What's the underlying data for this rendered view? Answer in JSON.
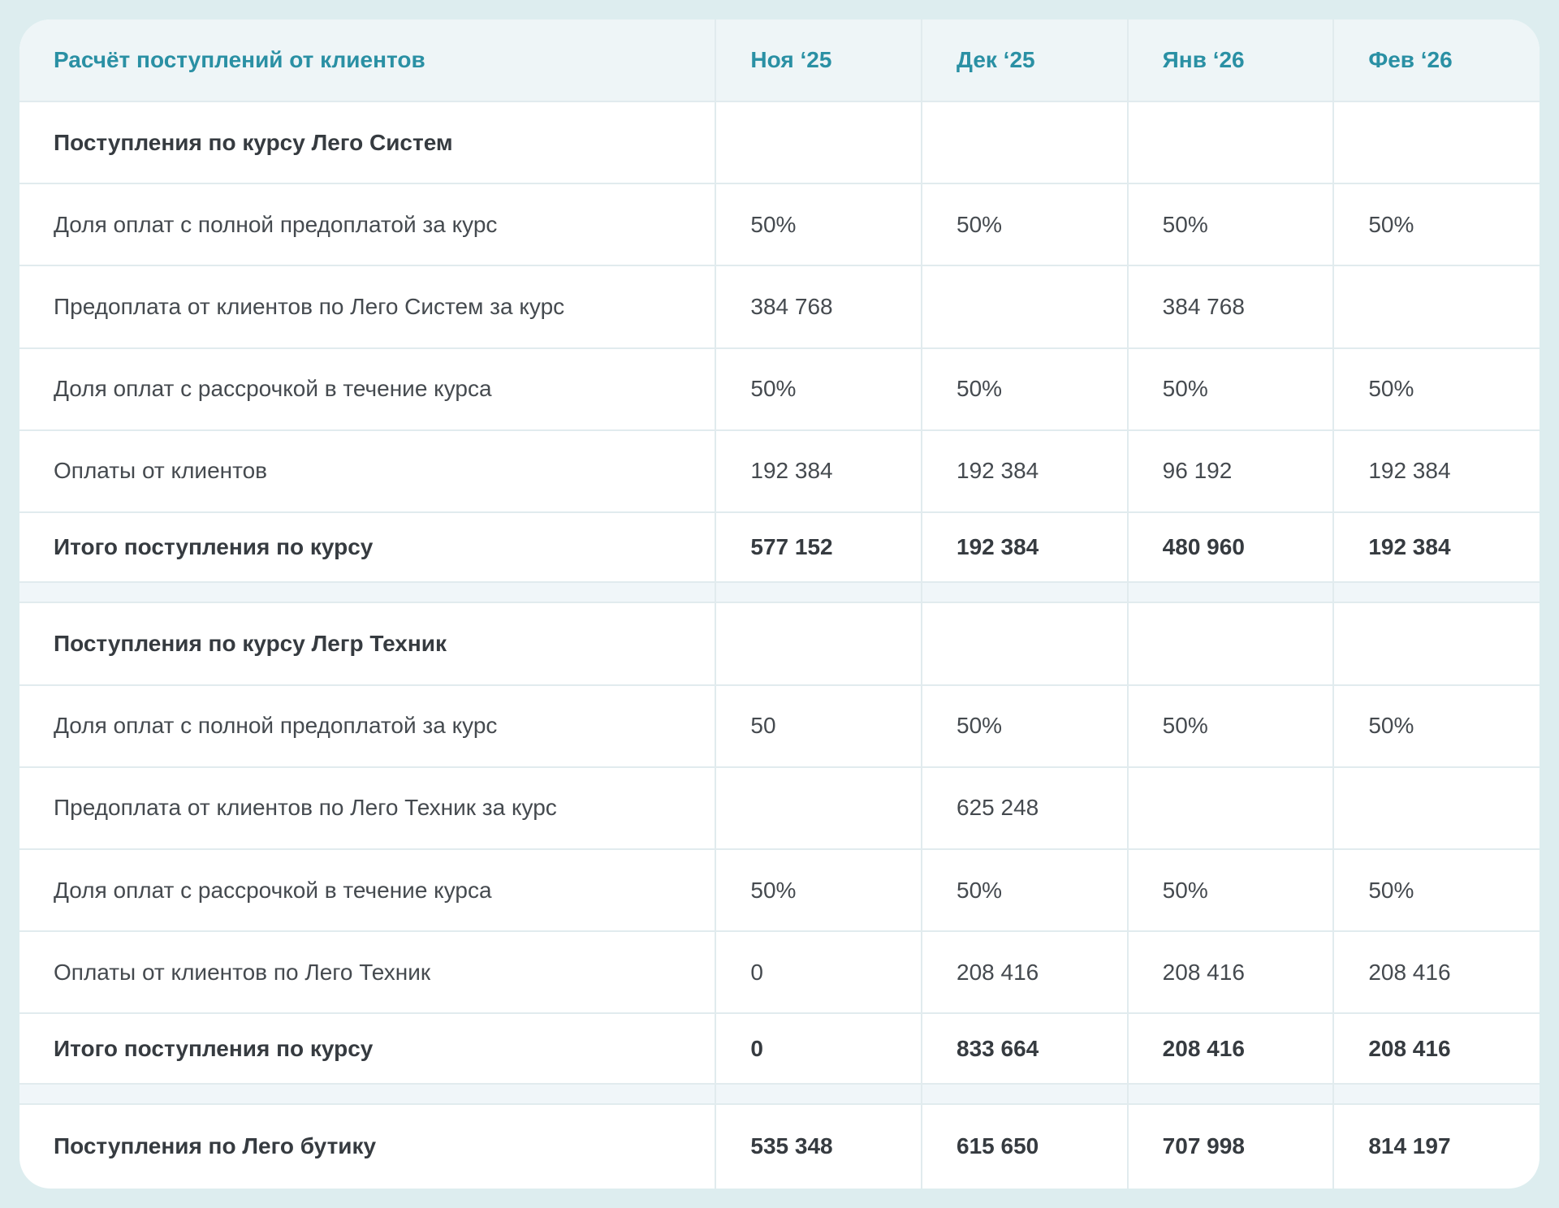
{
  "colors": {
    "accent": "#2a90a4",
    "page_background": "#ddedef",
    "separator_background": "#f0f6f9"
  },
  "table": {
    "title": "Расчёт поступлений от клиентов",
    "columns": [
      "Ноя ‘25",
      "Дек ‘25",
      "Янв ‘26",
      "Фев ‘26"
    ],
    "rows": [
      {
        "type": "section",
        "label": "Поступления по курсу Лего Систем",
        "values": [
          "",
          "",
          "",
          ""
        ]
      },
      {
        "type": "normal",
        "label": "Доля оплат с полной предоплатой за курс",
        "values": [
          "50%",
          "50%",
          "50%",
          "50%"
        ]
      },
      {
        "type": "normal",
        "label": "Предоплата от клиентов по Лего Систем за курс",
        "values": [
          "384 768",
          "",
          "384 768",
          ""
        ]
      },
      {
        "type": "normal",
        "label": "Доля оплат с рассрочкой в течение курса",
        "values": [
          "50%",
          "50%",
          "50%",
          "50%"
        ]
      },
      {
        "type": "normal",
        "label": "Оплаты от клиентов",
        "values": [
          "192 384",
          "192 384",
          "96 192",
          "192 384"
        ]
      },
      {
        "type": "total",
        "label": "Итого поступления по курсу",
        "values": [
          "577 152",
          "192 384",
          "480 960",
          "192 384"
        ]
      },
      {
        "type": "separator",
        "label": "",
        "values": [
          "",
          "",
          "",
          ""
        ]
      },
      {
        "type": "section",
        "label": "Поступления по курсу Легр Техник",
        "values": [
          "",
          "",
          "",
          ""
        ]
      },
      {
        "type": "normal",
        "label": "Доля оплат с полной предоплатой за курс",
        "values": [
          "50",
          "50%",
          "50%",
          "50%"
        ]
      },
      {
        "type": "normal",
        "label": "Предоплата от клиентов по Лего Техник за курс",
        "values": [
          "",
          "625 248",
          "",
          ""
        ]
      },
      {
        "type": "normal",
        "label": "Доля оплат с рассрочкой в течение курса",
        "values": [
          "50%",
          "50%",
          "50%",
          "50%"
        ]
      },
      {
        "type": "normal",
        "label": "Оплаты от клиентов по Лего Техник",
        "values": [
          "0",
          "208 416",
          "208 416",
          "208 416"
        ]
      },
      {
        "type": "total",
        "label": "Итого поступления по курсу",
        "values": [
          "0",
          "833 664",
          "208 416",
          "208 416"
        ]
      },
      {
        "type": "separator",
        "label": "",
        "values": [
          "",
          "",
          "",
          ""
        ]
      },
      {
        "type": "last",
        "label": "Поступления по Лего бутику",
        "values": [
          "535 348",
          "615 650",
          "707 998",
          "814 197"
        ]
      }
    ]
  }
}
